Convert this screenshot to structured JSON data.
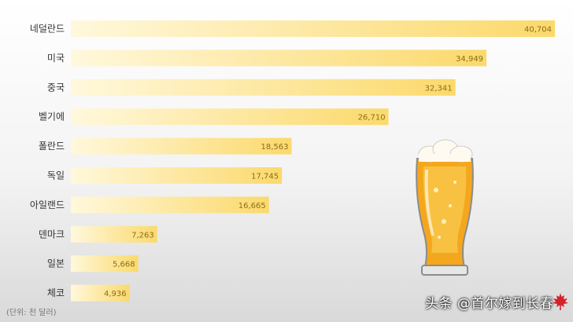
{
  "chart_data": {
    "type": "bar",
    "orientation": "horizontal",
    "categories": [
      "네덜란드",
      "미국",
      "중국",
      "벨기에",
      "폴란드",
      "독일",
      "아일랜드",
      "덴마크",
      "일본",
      "체코"
    ],
    "values": [
      40704,
      34949,
      32341,
      26710,
      18563,
      17745,
      16665,
      7263,
      5668,
      4936
    ],
    "value_labels": [
      "40,704",
      "34,949",
      "32,341",
      "26,710",
      "18,563",
      "17,745",
      "16,665",
      "7,263",
      "5,668",
      "4,936"
    ],
    "xlim": [
      0,
      40704
    ],
    "grid": false,
    "legend": "none",
    "unit_note": "(단위: 천 달러)",
    "bar_color_start": "#fff8dc",
    "bar_color_end": "#fbd96b"
  },
  "watermark": "头条 @首尔嫁到长春",
  "icons": {
    "beer": "beer-glass-icon",
    "maple": "maple-leaf-icon"
  }
}
